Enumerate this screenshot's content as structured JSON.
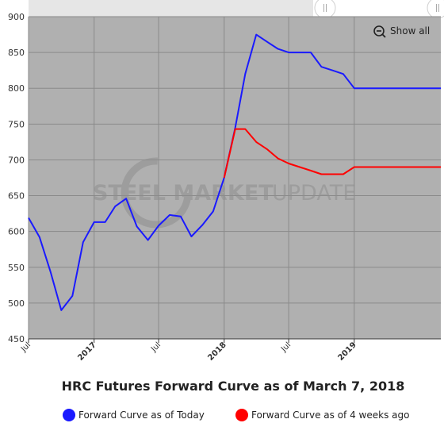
{
  "chart_data": {
    "type": "line",
    "title": "HRC Futures Forward Curve as of March 7, 2018",
    "ylim": [
      450,
      900
    ],
    "yticks": [
      450,
      500,
      550,
      600,
      650,
      700,
      750,
      800,
      850,
      900
    ],
    "xlim": [
      "2016-07-01",
      "2019-09-01"
    ],
    "xticks": [
      {
        "date": "2016-07-01",
        "label": "Jul",
        "bold": false
      },
      {
        "date": "2017-01-01",
        "label": "2017",
        "bold": true
      },
      {
        "date": "2017-07-01",
        "label": "Jul",
        "bold": false
      },
      {
        "date": "2018-01-01",
        "label": "2018",
        "bold": true
      },
      {
        "date": "2018-07-01",
        "label": "Jul",
        "bold": false
      },
      {
        "date": "2019-01-01",
        "label": "2019",
        "bold": true
      }
    ],
    "grid": true,
    "legend_position": "bottom",
    "series": [
      {
        "name": "Forward Curve as of Today",
        "color": "#1a1aff",
        "points": [
          {
            "x": "2016-07-01",
            "y": 619
          },
          {
            "x": "2016-08-01",
            "y": 592
          },
          {
            "x": "2016-09-01",
            "y": 543
          },
          {
            "x": "2016-10-01",
            "y": 490
          },
          {
            "x": "2016-11-01",
            "y": 510
          },
          {
            "x": "2016-12-01",
            "y": 585
          },
          {
            "x": "2017-01-01",
            "y": 613
          },
          {
            "x": "2017-02-01",
            "y": 613
          },
          {
            "x": "2017-03-01",
            "y": 635
          },
          {
            "x": "2017-04-01",
            "y": 646
          },
          {
            "x": "2017-05-01",
            "y": 607
          },
          {
            "x": "2017-06-01",
            "y": 588
          },
          {
            "x": "2017-07-01",
            "y": 608
          },
          {
            "x": "2017-08-01",
            "y": 623
          },
          {
            "x": "2017-09-01",
            "y": 621
          },
          {
            "x": "2017-10-01",
            "y": 593
          },
          {
            "x": "2017-11-01",
            "y": 609
          },
          {
            "x": "2017-12-01",
            "y": 628
          },
          {
            "x": "2018-01-01",
            "y": 675
          },
          {
            "x": "2018-02-01",
            "y": 745
          },
          {
            "x": "2018-03-01",
            "y": 820
          },
          {
            "x": "2018-04-01",
            "y": 875
          },
          {
            "x": "2018-05-01",
            "y": 865
          },
          {
            "x": "2018-06-01",
            "y": 855
          },
          {
            "x": "2018-07-01",
            "y": 850
          },
          {
            "x": "2018-08-01",
            "y": 850
          },
          {
            "x": "2018-09-01",
            "y": 850
          },
          {
            "x": "2018-10-01",
            "y": 830
          },
          {
            "x": "2018-11-01",
            "y": 825
          },
          {
            "x": "2018-12-01",
            "y": 820
          },
          {
            "x": "2019-01-01",
            "y": 800
          },
          {
            "x": "2019-02-01",
            "y": 800
          },
          {
            "x": "2019-03-01",
            "y": 800
          },
          {
            "x": "2019-04-01",
            "y": 800
          },
          {
            "x": "2019-05-01",
            "y": 800
          },
          {
            "x": "2019-06-01",
            "y": 800
          },
          {
            "x": "2019-07-01",
            "y": 800
          },
          {
            "x": "2019-08-01",
            "y": 800
          },
          {
            "x": "2019-09-01",
            "y": 800
          }
        ]
      },
      {
        "name": "Forward Curve as of 4 weeks ago",
        "color": "#ff0000",
        "points": [
          {
            "x": "2018-01-01",
            "y": 675
          },
          {
            "x": "2018-02-01",
            "y": 743
          },
          {
            "x": "2018-03-01",
            "y": 743
          },
          {
            "x": "2018-04-01",
            "y": 725
          },
          {
            "x": "2018-05-01",
            "y": 715
          },
          {
            "x": "2018-06-01",
            "y": 702
          },
          {
            "x": "2018-07-01",
            "y": 695
          },
          {
            "x": "2018-08-01",
            "y": 690
          },
          {
            "x": "2018-09-01",
            "y": 685
          },
          {
            "x": "2018-10-01",
            "y": 680
          },
          {
            "x": "2018-11-01",
            "y": 680
          },
          {
            "x": "2018-12-01",
            "y": 680
          },
          {
            "x": "2019-01-01",
            "y": 690
          },
          {
            "x": "2019-02-01",
            "y": 690
          },
          {
            "x": "2019-03-01",
            "y": 690
          },
          {
            "x": "2019-04-01",
            "y": 690
          },
          {
            "x": "2019-05-01",
            "y": 690
          },
          {
            "x": "2019-06-01",
            "y": 690
          },
          {
            "x": "2019-07-01",
            "y": 690
          },
          {
            "x": "2019-08-01",
            "y": 690
          },
          {
            "x": "2019-09-01",
            "y": 690
          }
        ]
      }
    ]
  },
  "controls": {
    "show_all_label": "Show all",
    "zoom_icon": "zoom-out-icon",
    "scrollbar_handle_icon": "grip-lines-icon"
  },
  "watermark": {
    "brand_bold": "STEEL MARKET",
    "brand_light": "UPDATE"
  },
  "colors": {
    "plot_background": "#b0b0b0",
    "navigator_background": "#e6e6e6",
    "grid": "#8a8a8a"
  }
}
